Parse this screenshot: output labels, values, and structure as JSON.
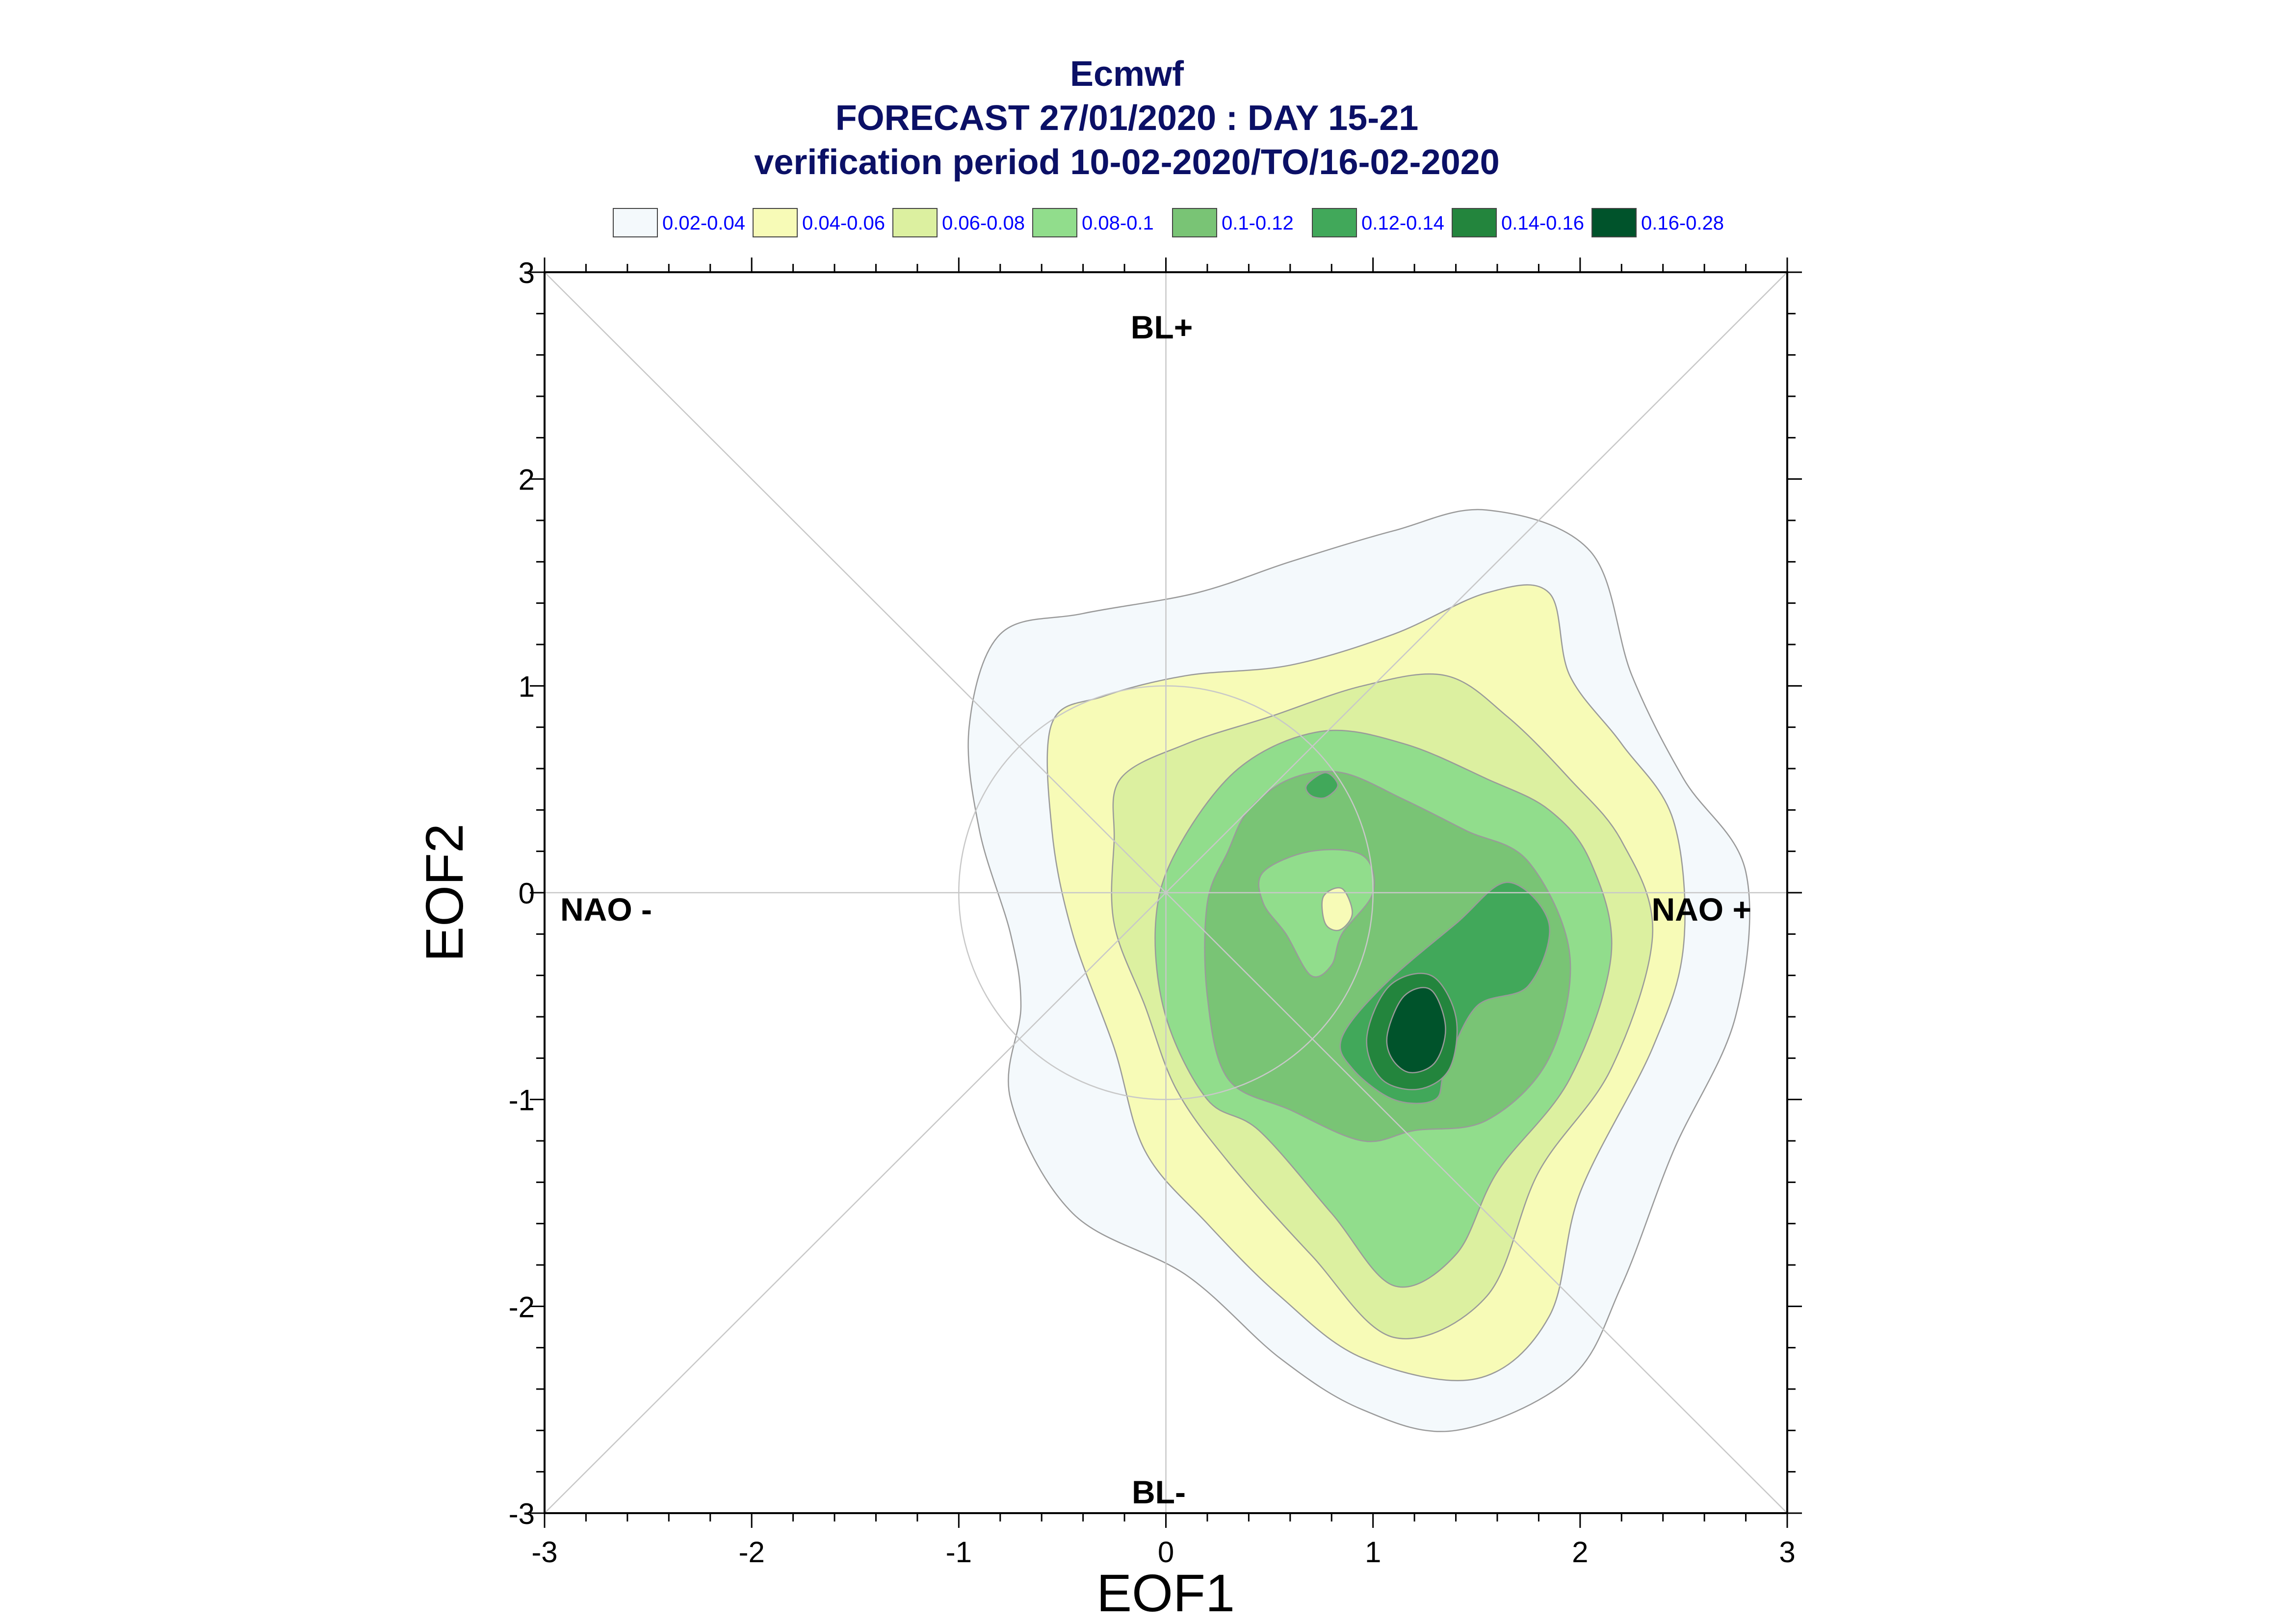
{
  "chart_data": {
    "type": "contour",
    "title": "Ecmwf",
    "subtitle_1": "FORECAST 27/01/2020 : DAY 15-21",
    "subtitle_2": "verification period 10-02-2020/TO/16-02-2020",
    "xlabel": "EOF1",
    "ylabel": "EOF2",
    "xlim": [
      -3,
      3
    ],
    "ylim": [
      -3,
      3
    ],
    "x_ticks": [
      "-3",
      "-2",
      "-1",
      "0",
      "1",
      "2",
      "3"
    ],
    "y_ticks": [
      "-3",
      "-2",
      "-1",
      "0",
      "1",
      "2",
      "3"
    ],
    "regime_labels": {
      "top": "BL+",
      "bottom": "BL-",
      "left": "NAO -",
      "right": "NAO +"
    },
    "reference_circle_radius": 1,
    "legend": [
      {
        "label": "0.02-0.04",
        "color": "#f4f9fc"
      },
      {
        "label": "0.04-0.06",
        "color": "#f7fbb7"
      },
      {
        "label": "0.06-0.08",
        "color": "#dcf0a0"
      },
      {
        "label": "0.08-0.1",
        "color": "#91dd8c"
      },
      {
        "label": "0.1-0.12",
        "color": "#79c475"
      },
      {
        "label": "0.12-0.14",
        "color": "#41a85a"
      },
      {
        "label": "0.14-0.16",
        "color": "#23853d"
      },
      {
        "label": "0.16-0.28",
        "color": "#00532b"
      }
    ],
    "density_contours": [
      {
        "level": "0.02-0.04",
        "color": "#f4f9fc",
        "outline": [
          [
            -0.95,
            0.8
          ],
          [
            -0.8,
            1.25
          ],
          [
            -0.4,
            1.35
          ],
          [
            0.15,
            1.45
          ],
          [
            0.6,
            1.6
          ],
          [
            1.1,
            1.75
          ],
          [
            1.55,
            1.85
          ],
          [
            2.05,
            1.65
          ],
          [
            2.25,
            1.05
          ],
          [
            2.5,
            0.55
          ],
          [
            2.8,
            0.1
          ],
          [
            2.75,
            -0.6
          ],
          [
            2.45,
            -1.25
          ],
          [
            2.2,
            -1.9
          ],
          [
            1.95,
            -2.35
          ],
          [
            1.4,
            -2.6
          ],
          [
            0.95,
            -2.5
          ],
          [
            0.55,
            -2.25
          ],
          [
            0.1,
            -1.85
          ],
          [
            -0.45,
            -1.55
          ],
          [
            -0.75,
            -1.0
          ],
          [
            -0.7,
            -0.55
          ],
          [
            -0.75,
            -0.2
          ],
          [
            -0.9,
            0.3
          ]
        ]
      },
      {
        "level": "0.04-0.06",
        "color": "#f7fbb7",
        "outline": [
          [
            -0.55,
            0.82
          ],
          [
            -0.3,
            0.95
          ],
          [
            0.1,
            1.05
          ],
          [
            0.6,
            1.1
          ],
          [
            1.1,
            1.25
          ],
          [
            1.55,
            1.45
          ],
          [
            1.85,
            1.45
          ],
          [
            1.95,
            1.05
          ],
          [
            2.2,
            0.72
          ],
          [
            2.45,
            0.35
          ],
          [
            2.5,
            -0.25
          ],
          [
            2.35,
            -0.75
          ],
          [
            2.0,
            -1.45
          ],
          [
            1.85,
            -2.05
          ],
          [
            1.5,
            -2.35
          ],
          [
            0.95,
            -2.25
          ],
          [
            0.55,
            -1.95
          ],
          [
            0.2,
            -1.6
          ],
          [
            -0.1,
            -1.25
          ],
          [
            -0.25,
            -0.75
          ],
          [
            -0.45,
            -0.2
          ],
          [
            -0.55,
            0.3
          ]
        ]
      },
      {
        "level": "0.06-0.08",
        "color": "#dcf0a0",
        "outline": [
          [
            -0.22,
            0.55
          ],
          [
            0.1,
            0.72
          ],
          [
            0.5,
            0.85
          ],
          [
            0.95,
            1.0
          ],
          [
            1.35,
            1.05
          ],
          [
            1.65,
            0.85
          ],
          [
            1.95,
            0.55
          ],
          [
            2.2,
            0.25
          ],
          [
            2.35,
            -0.2
          ],
          [
            2.15,
            -0.85
          ],
          [
            1.8,
            -1.35
          ],
          [
            1.55,
            -1.95
          ],
          [
            1.1,
            -2.15
          ],
          [
            0.7,
            -1.75
          ],
          [
            0.3,
            -1.3
          ],
          [
            0.05,
            -0.95
          ],
          [
            -0.1,
            -0.55
          ],
          [
            -0.25,
            -0.15
          ],
          [
            -0.25,
            0.25
          ]
        ]
      },
      {
        "level": "0.08-0.1",
        "color": "#91dd8c",
        "outline": [
          [
            0.05,
            0.2
          ],
          [
            0.35,
            0.6
          ],
          [
            0.75,
            0.78
          ],
          [
            1.15,
            0.72
          ],
          [
            1.55,
            0.55
          ],
          [
            1.85,
            0.4
          ],
          [
            2.05,
            0.15
          ],
          [
            2.15,
            -0.3
          ],
          [
            1.95,
            -0.9
          ],
          [
            1.6,
            -1.35
          ],
          [
            1.4,
            -1.75
          ],
          [
            1.1,
            -1.9
          ],
          [
            0.8,
            -1.55
          ],
          [
            0.45,
            -1.15
          ],
          [
            0.2,
            -1.0
          ],
          [
            0.0,
            -0.6
          ],
          [
            -0.05,
            -0.15
          ]
        ]
      },
      {
        "level": "0.1-0.12",
        "color": "#79c475",
        "outline": [
          [
            0.4,
            0.4
          ],
          [
            0.6,
            0.55
          ],
          [
            0.85,
            0.58
          ],
          [
            1.15,
            0.45
          ],
          [
            1.45,
            0.3
          ],
          [
            1.75,
            0.15
          ],
          [
            1.95,
            -0.3
          ],
          [
            1.85,
            -0.8
          ],
          [
            1.55,
            -1.1
          ],
          [
            1.2,
            -1.15
          ],
          [
            0.95,
            -1.2
          ],
          [
            0.6,
            -1.05
          ],
          [
            0.3,
            -0.9
          ],
          [
            0.2,
            -0.5
          ],
          [
            0.2,
            -0.05
          ],
          [
            0.3,
            0.2
          ]
        ]
      },
      {
        "level": "0.12-0.14",
        "color": "#41a85a",
        "outline": [
          [
            0.85,
            -0.7
          ],
          [
            1.05,
            -0.45
          ],
          [
            1.4,
            -0.15
          ],
          [
            1.65,
            0.05
          ],
          [
            1.85,
            -0.15
          ],
          [
            1.75,
            -0.45
          ],
          [
            1.5,
            -0.55
          ],
          [
            1.35,
            -0.85
          ],
          [
            1.3,
            -1.0
          ],
          [
            1.1,
            -1.0
          ],
          [
            0.9,
            -0.85
          ]
        ]
      },
      {
        "level": "0.12-0.14",
        "color": "#41a85a",
        "outline": [
          [
            0.68,
            0.52
          ],
          [
            0.77,
            0.58
          ],
          [
            0.83,
            0.52
          ],
          [
            0.77,
            0.46
          ],
          [
            0.7,
            0.47
          ]
        ]
      },
      {
        "level": "0.14-0.16",
        "color": "#23853d",
        "outline": [
          [
            0.97,
            -0.7
          ],
          [
            1.08,
            -0.45
          ],
          [
            1.28,
            -0.4
          ],
          [
            1.4,
            -0.6
          ],
          [
            1.37,
            -0.85
          ],
          [
            1.22,
            -0.95
          ],
          [
            1.04,
            -0.9
          ]
        ]
      },
      {
        "level": "0.16-0.28",
        "color": "#00532b",
        "outline": [
          [
            1.07,
            -0.68
          ],
          [
            1.15,
            -0.5
          ],
          [
            1.28,
            -0.47
          ],
          [
            1.35,
            -0.65
          ],
          [
            1.3,
            -0.82
          ],
          [
            1.18,
            -0.87
          ],
          [
            1.09,
            -0.8
          ]
        ]
      },
      {
        "level": "0.08-0.1",
        "color": "#91dd8c",
        "outline": [
          [
            0.47,
            0.1
          ],
          [
            0.7,
            0.2
          ],
          [
            0.95,
            0.18
          ],
          [
            1.0,
            0.0
          ],
          [
            0.85,
            -0.2
          ],
          [
            0.8,
            -0.35
          ],
          [
            0.7,
            -0.4
          ],
          [
            0.58,
            -0.2
          ],
          [
            0.47,
            -0.05
          ]
        ]
      },
      {
        "level": "0.04-0.06",
        "color": "#f7fbb7",
        "outline": [
          [
            0.76,
            -0.02
          ],
          [
            0.85,
            0.02
          ],
          [
            0.9,
            -0.1
          ],
          [
            0.84,
            -0.18
          ],
          [
            0.77,
            -0.15
          ]
        ]
      }
    ]
  }
}
